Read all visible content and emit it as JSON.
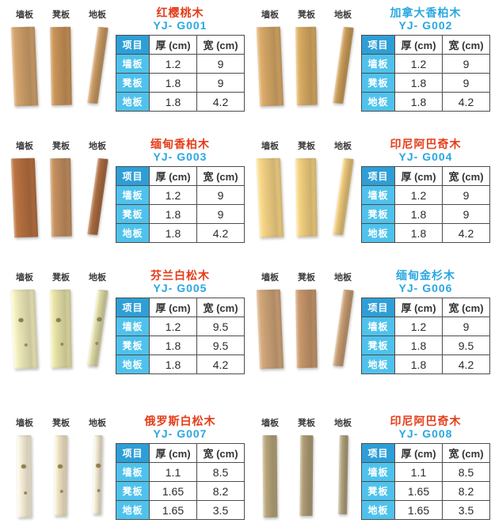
{
  "colors": {
    "name_red": "#e53c19",
    "name_blue": "#29a8e0",
    "code_blue": "#29a8e0",
    "header_cell_bg": "#2e9fd6",
    "row_label_bg": "#4fc2ec",
    "table_border": "#4d4d4d",
    "plank_label_text": "#3c3c3c"
  },
  "plank_labels": [
    "墙板",
    "凳板",
    "地板"
  ],
  "table_headers": {
    "item": "项目",
    "thickness": "厚 (cm)",
    "width": "宽 (cm)"
  },
  "products": [
    {
      "name": "红樱桃木",
      "code": "YJ- G001",
      "name_color": "#e53c19",
      "plank_variant": "short-wide",
      "knots": false,
      "wood_colors": [
        "#c89a66",
        "#c18e55",
        "#c59762"
      ],
      "rows": [
        {
          "label": "墙板",
          "thickness": "1.2",
          "width": "9"
        },
        {
          "label": "凳板",
          "thickness": "1.8",
          "width": "9"
        },
        {
          "label": "地板",
          "thickness": "1.8",
          "width": "4.2"
        }
      ]
    },
    {
      "name": "加拿大香柏木",
      "code": "YJ- G002",
      "name_color": "#29a8e0",
      "plank_variant": "short-wide",
      "knots": false,
      "wood_colors": [
        "#cfa263",
        "#d0a45e",
        "#c79a58"
      ],
      "rows": [
        {
          "label": "墙板",
          "thickness": "1.2",
          "width": "9"
        },
        {
          "label": "凳板",
          "thickness": "1.8",
          "width": "9"
        },
        {
          "label": "地板",
          "thickness": "1.8",
          "width": "4.2"
        }
      ]
    },
    {
      "name": "缅甸香柏木",
      "code": "YJ- G003",
      "name_color": "#e53c19",
      "plank_variant": "short-wide",
      "knots": false,
      "wood_colors": [
        "#b06c3e",
        "#bd8a5c",
        "#a86a40"
      ],
      "rows": [
        {
          "label": "墙板",
          "thickness": "1.2",
          "width": "9"
        },
        {
          "label": "凳板",
          "thickness": "1.8",
          "width": "9"
        },
        {
          "label": "地板",
          "thickness": "1.8",
          "width": "4.2"
        }
      ]
    },
    {
      "name": "印尼阿巴奇木",
      "code": "YJ- G004",
      "name_color": "#e53c19",
      "plank_variant": "short-wide",
      "knots": false,
      "wood_colors": [
        "#eccb80",
        "#e9c87b",
        "#e6c377"
      ],
      "rows": [
        {
          "label": "墙板",
          "thickness": "1.2",
          "width": "9"
        },
        {
          "label": "凳板",
          "thickness": "1.8",
          "width": "9"
        },
        {
          "label": "地板",
          "thickness": "1.8",
          "width": "4.2"
        }
      ]
    },
    {
      "name": "芬兰白松木",
      "code": "YJ- G005",
      "name_color": "#e53c19",
      "plank_variant": "short-wide",
      "knots": true,
      "wood_colors": [
        "#e6e2b4",
        "#dedaa2",
        "#d9d6a4"
      ],
      "rows": [
        {
          "label": "墙板",
          "thickness": "1.2",
          "width": "9.5"
        },
        {
          "label": "凳板",
          "thickness": "1.8",
          "width": "9.5"
        },
        {
          "label": "地板",
          "thickness": "1.8",
          "width": "4.2"
        }
      ]
    },
    {
      "name": "缅甸金杉木",
      "code": "YJ- G006",
      "name_color": "#29a8e0",
      "plank_variant": "short-wide",
      "knots": false,
      "wood_colors": [
        "#c79e74",
        "#bf9167",
        "#c39a70"
      ],
      "rows": [
        {
          "label": "墙板",
          "thickness": "1.2",
          "width": "9"
        },
        {
          "label": "凳板",
          "thickness": "1.8",
          "width": "9.5"
        },
        {
          "label": "地板",
          "thickness": "1.8",
          "width": "4.2"
        }
      ]
    },
    {
      "name": "俄罗斯白松木",
      "code": "YJ- G007",
      "name_color": "#e53c19",
      "plank_variant": "tall-narrow",
      "knots": true,
      "wood_colors": [
        "#f1e9d3",
        "#ece0c2",
        "#efe7d0"
      ],
      "rows": [
        {
          "label": "墙板",
          "thickness": "1.1",
          "width": "8.5"
        },
        {
          "label": "凳板",
          "thickness": "1.65",
          "width": "8.2"
        },
        {
          "label": "地板",
          "thickness": "1.65",
          "width": "3.5"
        }
      ]
    },
    {
      "name": "印尼阿巴奇木",
      "code": "YJ- G008",
      "name_color": "#e53c19",
      "plank_variant": "tall-narrow",
      "knots": false,
      "wood_colors": [
        "#b2a077",
        "#aa9972",
        "#afa07b"
      ],
      "rows": [
        {
          "label": "墙板",
          "thickness": "1.1",
          "width": "8.5"
        },
        {
          "label": "凳板",
          "thickness": "1.65",
          "width": "8.2"
        },
        {
          "label": "地板",
          "thickness": "1.65",
          "width": "3.5"
        }
      ]
    }
  ]
}
